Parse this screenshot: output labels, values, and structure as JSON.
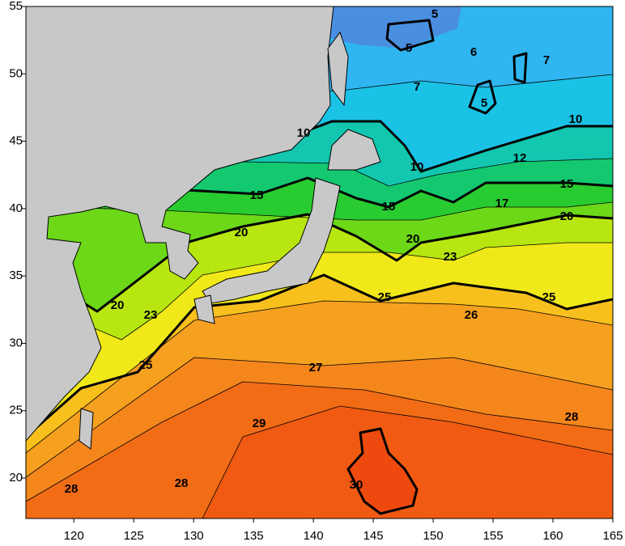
{
  "map": {
    "xaxis": {
      "lim": [
        116,
        165
      ],
      "ticks": [
        120,
        125,
        130,
        135,
        140,
        145,
        150,
        155,
        160,
        165
      ]
    },
    "yaxis": {
      "lim": [
        17,
        55
      ],
      "ticks": [
        20,
        25,
        30,
        35,
        40,
        45,
        50,
        55
      ]
    },
    "contour_labels": [
      5,
      5,
      5,
      6,
      7,
      7,
      10,
      10,
      10,
      12,
      15,
      15,
      15,
      17,
      20,
      20,
      20,
      20,
      23,
      23,
      25,
      25,
      25,
      26,
      27,
      28,
      28,
      28,
      29,
      30
    ]
  }
}
